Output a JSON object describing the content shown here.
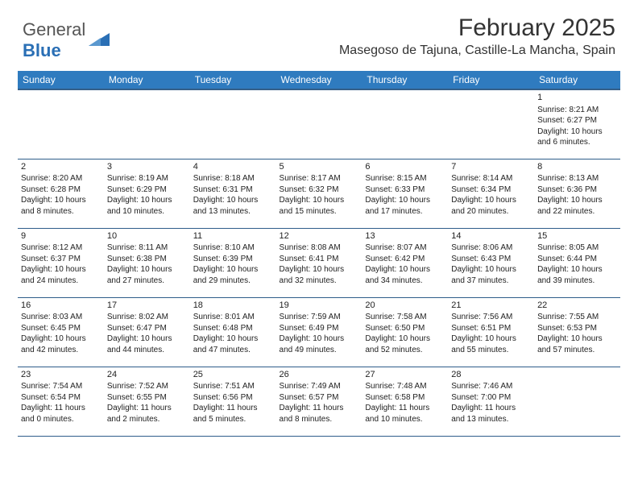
{
  "logo": {
    "text1": "General",
    "text2": "Blue"
  },
  "title": "February 2025",
  "location": "Masegoso de Tajuna, Castille-La Mancha, Spain",
  "colors": {
    "header_bg": "#2f7bbf",
    "header_text": "#ffffff",
    "border": "#2e5d8a",
    "logo_gray": "#555555",
    "logo_blue": "#2a6fb5"
  },
  "weekdays": [
    "Sunday",
    "Monday",
    "Tuesday",
    "Wednesday",
    "Thursday",
    "Friday",
    "Saturday"
  ],
  "weeks": [
    [
      null,
      null,
      null,
      null,
      null,
      null,
      {
        "d": "1",
        "sr": "8:21 AM",
        "ss": "6:27 PM",
        "dl": "10 hours and 6 minutes."
      }
    ],
    [
      {
        "d": "2",
        "sr": "8:20 AM",
        "ss": "6:28 PM",
        "dl": "10 hours and 8 minutes."
      },
      {
        "d": "3",
        "sr": "8:19 AM",
        "ss": "6:29 PM",
        "dl": "10 hours and 10 minutes."
      },
      {
        "d": "4",
        "sr": "8:18 AM",
        "ss": "6:31 PM",
        "dl": "10 hours and 13 minutes."
      },
      {
        "d": "5",
        "sr": "8:17 AM",
        "ss": "6:32 PM",
        "dl": "10 hours and 15 minutes."
      },
      {
        "d": "6",
        "sr": "8:15 AM",
        "ss": "6:33 PM",
        "dl": "10 hours and 17 minutes."
      },
      {
        "d": "7",
        "sr": "8:14 AM",
        "ss": "6:34 PM",
        "dl": "10 hours and 20 minutes."
      },
      {
        "d": "8",
        "sr": "8:13 AM",
        "ss": "6:36 PM",
        "dl": "10 hours and 22 minutes."
      }
    ],
    [
      {
        "d": "9",
        "sr": "8:12 AM",
        "ss": "6:37 PM",
        "dl": "10 hours and 24 minutes."
      },
      {
        "d": "10",
        "sr": "8:11 AM",
        "ss": "6:38 PM",
        "dl": "10 hours and 27 minutes."
      },
      {
        "d": "11",
        "sr": "8:10 AM",
        "ss": "6:39 PM",
        "dl": "10 hours and 29 minutes."
      },
      {
        "d": "12",
        "sr": "8:08 AM",
        "ss": "6:41 PM",
        "dl": "10 hours and 32 minutes."
      },
      {
        "d": "13",
        "sr": "8:07 AM",
        "ss": "6:42 PM",
        "dl": "10 hours and 34 minutes."
      },
      {
        "d": "14",
        "sr": "8:06 AM",
        "ss": "6:43 PM",
        "dl": "10 hours and 37 minutes."
      },
      {
        "d": "15",
        "sr": "8:05 AM",
        "ss": "6:44 PM",
        "dl": "10 hours and 39 minutes."
      }
    ],
    [
      {
        "d": "16",
        "sr": "8:03 AM",
        "ss": "6:45 PM",
        "dl": "10 hours and 42 minutes."
      },
      {
        "d": "17",
        "sr": "8:02 AM",
        "ss": "6:47 PM",
        "dl": "10 hours and 44 minutes."
      },
      {
        "d": "18",
        "sr": "8:01 AM",
        "ss": "6:48 PM",
        "dl": "10 hours and 47 minutes."
      },
      {
        "d": "19",
        "sr": "7:59 AM",
        "ss": "6:49 PM",
        "dl": "10 hours and 49 minutes."
      },
      {
        "d": "20",
        "sr": "7:58 AM",
        "ss": "6:50 PM",
        "dl": "10 hours and 52 minutes."
      },
      {
        "d": "21",
        "sr": "7:56 AM",
        "ss": "6:51 PM",
        "dl": "10 hours and 55 minutes."
      },
      {
        "d": "22",
        "sr": "7:55 AM",
        "ss": "6:53 PM",
        "dl": "10 hours and 57 minutes."
      }
    ],
    [
      {
        "d": "23",
        "sr": "7:54 AM",
        "ss": "6:54 PM",
        "dl": "11 hours and 0 minutes."
      },
      {
        "d": "24",
        "sr": "7:52 AM",
        "ss": "6:55 PM",
        "dl": "11 hours and 2 minutes."
      },
      {
        "d": "25",
        "sr": "7:51 AM",
        "ss": "6:56 PM",
        "dl": "11 hours and 5 minutes."
      },
      {
        "d": "26",
        "sr": "7:49 AM",
        "ss": "6:57 PM",
        "dl": "11 hours and 8 minutes."
      },
      {
        "d": "27",
        "sr": "7:48 AM",
        "ss": "6:58 PM",
        "dl": "11 hours and 10 minutes."
      },
      {
        "d": "28",
        "sr": "7:46 AM",
        "ss": "7:00 PM",
        "dl": "11 hours and 13 minutes."
      },
      null
    ]
  ],
  "labels": {
    "sunrise": "Sunrise:",
    "sunset": "Sunset:",
    "daylight": "Daylight:"
  }
}
